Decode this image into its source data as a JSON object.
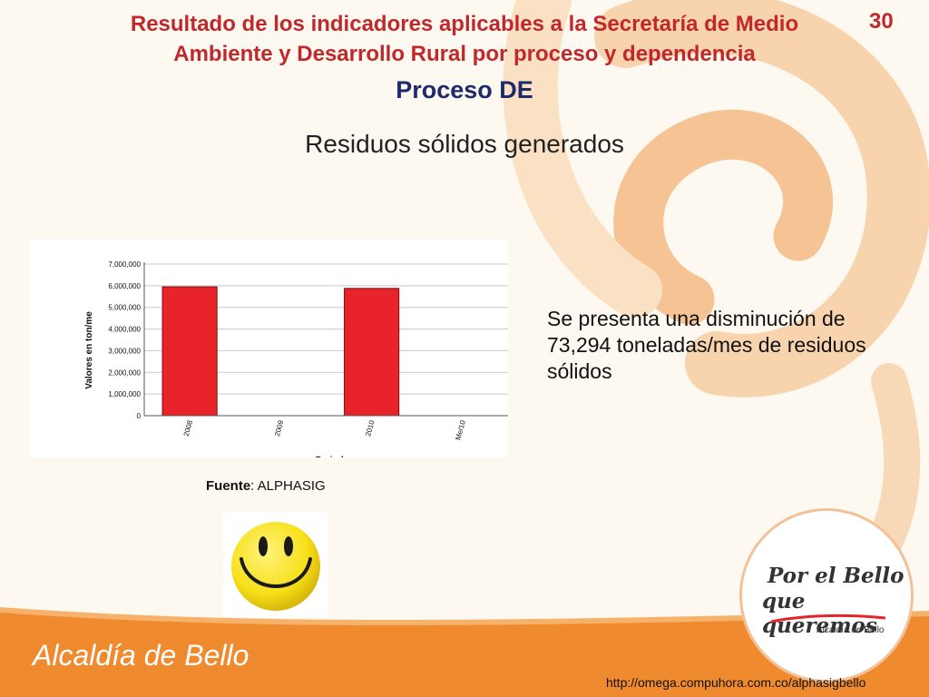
{
  "slide": {
    "title": "Resultado de los indicadores aplicables a la Secretaría de Medio Ambiente y Desarrollo Rural  por proceso y dependencia",
    "page_number": "30",
    "subtitle": "Proceso DE",
    "chart_heading": "Residuos sólidos generados",
    "note": "Se presenta una disminución de 73,294 toneladas/mes de residuos sólidos",
    "source_label": "Fuente",
    "source_value": ": ALPHASIG",
    "logo_line1": "Por el Bello",
    "logo_line2": "que queremos",
    "logo_sub": "Alcaldía de Bello",
    "footer_brand": "Alcaldía de Bello",
    "footer_url": "http://omega.compuhora.com.co/alphasigbello"
  },
  "colors": {
    "bar": "#e8232a",
    "title": "#c0282b",
    "subtitle": "#1f2a6b",
    "background_art": "#f4a857",
    "footer_band": "#f08a2e",
    "smiley": "#f7e019"
  },
  "icons": [
    "smiley-face-icon"
  ],
  "chart_data": {
    "type": "bar",
    "categories": [
      "2008",
      "2009",
      "2010",
      "Me/10"
    ],
    "values": [
      5950000,
      0,
      5876706,
      0
    ],
    "ylabel": "Valores en ton/me",
    "xlabel": "Periodos",
    "ylim": [
      0,
      7000000
    ],
    "yticks": [
      "7,000,000",
      "6,000,000",
      "5,000,000",
      "4,000,000",
      "3,000,000",
      "2,000,000",
      "1,000,000",
      "0"
    ],
    "grid": true
  }
}
